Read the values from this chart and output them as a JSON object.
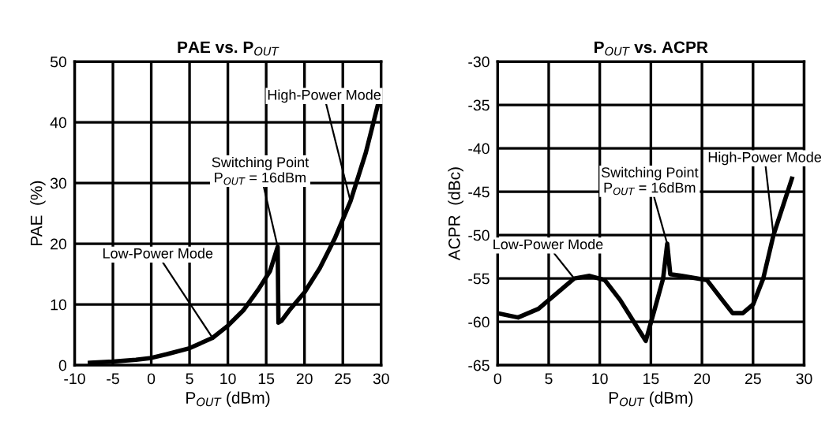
{
  "chart_data": [
    {
      "type": "line",
      "title": "PAE vs. P$_{OUT}$",
      "xlabel": "P$_{OUT}$ (dBm)",
      "ylabel": "PAE  (%)",
      "xlim": [
        -10,
        30
      ],
      "xticks": [
        -10,
        -5,
        0,
        5,
        10,
        15,
        20,
        25,
        30
      ],
      "ylim": [
        0,
        50
      ],
      "yticks": [
        0,
        10,
        20,
        30,
        40,
        50
      ],
      "grid": true,
      "marker": "none",
      "line_style": "solid",
      "series": [
        {
          "color": "#000000",
          "x": [
            -8,
            -5,
            -2,
            0,
            2,
            5,
            8,
            10,
            12,
            14,
            15.5,
            16.5,
            16.6,
            17,
            18,
            20,
            22,
            24,
            26,
            28,
            30
          ],
          "values": [
            0.4,
            0.6,
            0.9,
            1.2,
            1.8,
            2.8,
            4.5,
            6.5,
            9,
            12.5,
            15.5,
            19.5,
            7,
            7.3,
            9,
            12,
            16,
            21,
            27,
            35,
            45
          ]
        }
      ],
      "annotations": [
        {
          "text": "Low-Power Mode",
          "x": 8,
          "y": 4.5
        },
        {
          "text": "Switching Point\nP$_{OUT}$ = 16dBm",
          "x": 16.5,
          "y": 19.5
        },
        {
          "text": "High-Power Mode",
          "x": 26,
          "y": 27
        }
      ]
    },
    {
      "type": "line",
      "title": "P$_{OUT}$ vs. ACPR",
      "xlabel": "P$_{OUT}$ (dBm)",
      "ylabel": "ACPR  (dBc)",
      "xlim": [
        0,
        30
      ],
      "xticks": [
        0,
        5,
        10,
        15,
        20,
        25,
        30
      ],
      "ylim": [
        -65,
        -30
      ],
      "yticks": [
        -65,
        -60,
        -55,
        -50,
        -45,
        -40,
        -35,
        -30
      ],
      "grid": true,
      "marker": "none",
      "line_style": "solid",
      "series": [
        {
          "color": "#000000",
          "x": [
            0,
            2,
            4,
            6,
            7.5,
            9,
            10.5,
            12,
            14.5,
            15.5,
            16.2,
            16.6,
            16.9,
            18,
            20.5,
            22,
            23,
            24,
            25,
            26,
            27,
            28.8
          ],
          "values": [
            -59,
            -59.5,
            -58.5,
            -56.5,
            -55,
            -54.7,
            -55.2,
            -57.5,
            -62.2,
            -58,
            -55,
            -51,
            -54.5,
            -54.7,
            -55.2,
            -57.5,
            -59,
            -59,
            -58,
            -55,
            -50,
            -43.5
          ]
        }
      ],
      "annotations": [
        {
          "text": "Low-Power Mode",
          "x": 7.5,
          "y": -55
        },
        {
          "text": "Switching Point\nP$_{OUT}$ = 16dBm",
          "x": 16.6,
          "y": -51
        },
        {
          "text": "High-Power Mode",
          "x": 27,
          "y": -50
        }
      ]
    }
  ]
}
